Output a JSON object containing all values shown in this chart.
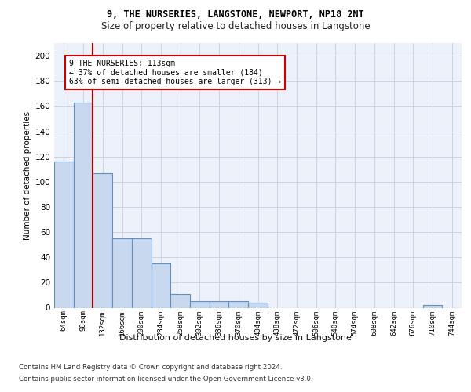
{
  "title": "9, THE NURSERIES, LANGSTONE, NEWPORT, NP18 2NT",
  "subtitle": "Size of property relative to detached houses in Langstone",
  "xlabel": "Distribution of detached houses by size in Langstone",
  "ylabel": "Number of detached properties",
  "bar_color": "#c8d8ee",
  "bar_edge_color": "#6090c0",
  "categories": [
    "64sqm",
    "98sqm",
    "132sqm",
    "166sqm",
    "200sqm",
    "234sqm",
    "268sqm",
    "302sqm",
    "336sqm",
    "370sqm",
    "404sqm",
    "438sqm",
    "472sqm",
    "506sqm",
    "540sqm",
    "574sqm",
    "608sqm",
    "642sqm",
    "676sqm",
    "710sqm",
    "744sqm"
  ],
  "values": [
    116,
    163,
    107,
    55,
    55,
    35,
    11,
    5,
    5,
    5,
    4,
    0,
    0,
    0,
    0,
    0,
    0,
    0,
    0,
    2,
    0
  ],
  "ylim": [
    0,
    210
  ],
  "yticks": [
    0,
    20,
    40,
    60,
    80,
    100,
    120,
    140,
    160,
    180,
    200
  ],
  "property_bin_index": 1,
  "annotation_text": "9 THE NURSERIES: 113sqm\n← 37% of detached houses are smaller (184)\n63% of semi-detached houses are larger (313) →",
  "vline_color": "#aa0000",
  "annotation_box_edge": "#cc0000",
  "background_color": "#edf2fa",
  "footer_line1": "Contains HM Land Registry data © Crown copyright and database right 2024.",
  "footer_line2": "Contains public sector information licensed under the Open Government Licence v3.0."
}
